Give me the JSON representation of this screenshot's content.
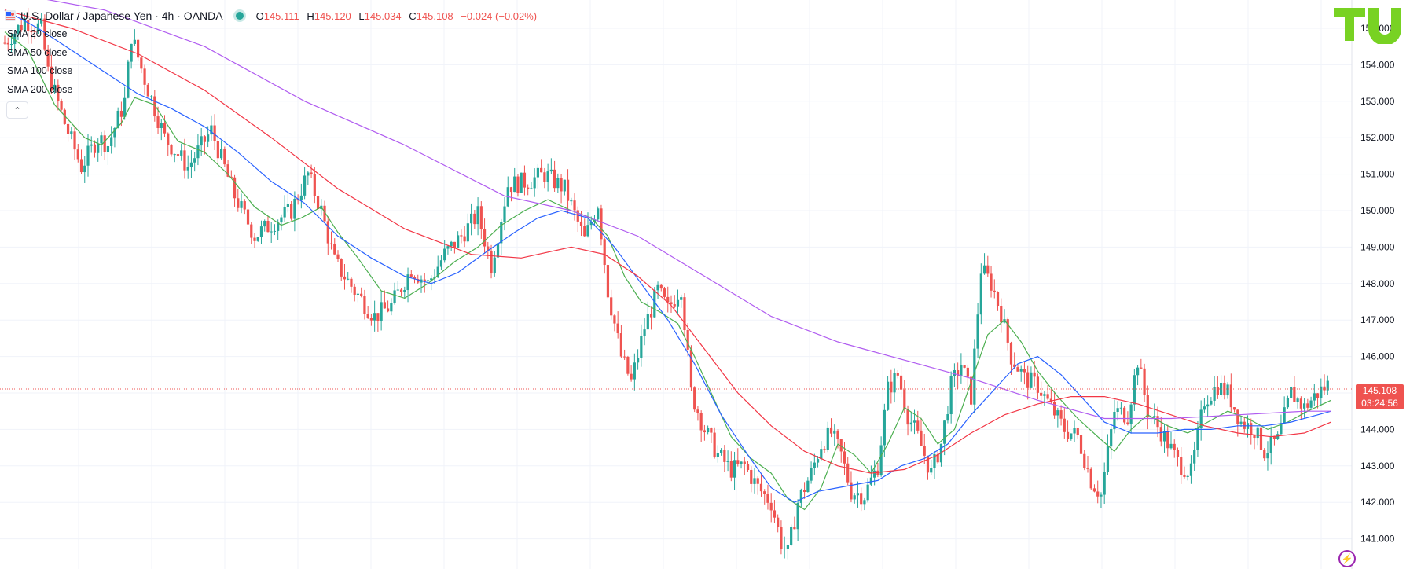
{
  "header": {
    "title": "U.S. Dollar / Japanese Yen · 4h · OANDA",
    "o_label": "O",
    "o": "145.111",
    "h_label": "H",
    "h": "145.120",
    "l_label": "L",
    "l": "145.034",
    "c_label": "C",
    "c": "145.108",
    "change": "−0.024 (−0.02%)"
  },
  "indicators": [
    {
      "label": "SMA 20 close",
      "color": "#4caf50"
    },
    {
      "label": "SMA 50 close",
      "color": "#2962ff"
    },
    {
      "label": "SMA 100 close",
      "color": "#f23645"
    },
    {
      "label": "SMA 200 close",
      "color": "#b05cf0"
    }
  ],
  "collapse_icon": "chevron-up-icon",
  "price_tag": {
    "price": "145.108",
    "countdown": "03:24:56"
  },
  "colors": {
    "up": "#26a69a",
    "down": "#ef5350",
    "grid": "#f0f3fa",
    "price_line": "#ef5350"
  },
  "chart_data": {
    "type": "candlestick",
    "y_axis_ticks": [
      "155.000",
      "154.000",
      "153.000",
      "152.000",
      "151.000",
      "150.000",
      "149.000",
      "148.000",
      "147.000",
      "146.000",
      "145.000",
      "144.000",
      "143.000",
      "142.000",
      "141.000"
    ],
    "ylim": [
      140.5,
      155.5
    ],
    "last_price": 145.108,
    "close_path": [
      [
        0,
        154.6
      ],
      [
        12,
        155.2
      ],
      [
        22,
        155.0
      ],
      [
        26,
        153.8
      ],
      [
        36,
        152.4
      ],
      [
        46,
        151.2
      ],
      [
        56,
        152.0
      ],
      [
        62,
        151.8
      ],
      [
        72,
        153.0
      ],
      [
        76,
        154.8
      ],
      [
        84,
        153.6
      ],
      [
        96,
        152.0
      ],
      [
        110,
        151.2
      ],
      [
        124,
        152.2
      ],
      [
        138,
        150.4
      ],
      [
        150,
        149.3
      ],
      [
        162,
        149.7
      ],
      [
        172,
        150.0
      ],
      [
        182,
        151.0
      ],
      [
        190,
        150.0
      ],
      [
        198,
        148.6
      ],
      [
        210,
        147.8
      ],
      [
        222,
        147.1
      ],
      [
        232,
        147.4
      ],
      [
        244,
        148.4
      ],
      [
        254,
        148.0
      ],
      [
        264,
        148.8
      ],
      [
        274,
        149.3
      ],
      [
        284,
        149.9
      ],
      [
        292,
        148.5
      ],
      [
        302,
        150.7
      ],
      [
        314,
        150.8
      ],
      [
        324,
        151.0
      ],
      [
        336,
        150.6
      ],
      [
        348,
        149.2
      ],
      [
        356,
        150.2
      ],
      [
        362,
        147.8
      ],
      [
        370,
        146.0
      ],
      [
        376,
        145.3
      ],
      [
        384,
        146.8
      ],
      [
        392,
        147.8
      ],
      [
        398,
        147.3
      ],
      [
        406,
        147.9
      ],
      [
        412,
        145.0
      ],
      [
        420,
        144.0
      ],
      [
        428,
        143.3
      ],
      [
        436,
        142.9
      ],
      [
        444,
        143.0
      ],
      [
        452,
        142.4
      ],
      [
        460,
        142.0
      ],
      [
        466,
        140.9
      ],
      [
        470,
        140.6
      ],
      [
        476,
        142.0
      ],
      [
        484,
        142.8
      ],
      [
        490,
        143.6
      ],
      [
        496,
        143.9
      ],
      [
        502,
        143.3
      ],
      [
        508,
        142.3
      ],
      [
        516,
        142.2
      ],
      [
        524,
        143.0
      ],
      [
        530,
        145.1
      ],
      [
        536,
        145.5
      ],
      [
        542,
        144.4
      ],
      [
        548,
        143.8
      ],
      [
        556,
        142.8
      ],
      [
        562,
        143.6
      ],
      [
        568,
        145.2
      ],
      [
        574,
        145.8
      ],
      [
        580,
        144.9
      ],
      [
        586,
        148.4
      ],
      [
        592,
        148.0
      ],
      [
        598,
        147.2
      ],
      [
        604,
        146.0
      ],
      [
        612,
        145.4
      ],
      [
        620,
        145.2
      ],
      [
        628,
        144.6
      ],
      [
        636,
        144.0
      ],
      [
        644,
        143.8
      ],
      [
        652,
        142.6
      ],
      [
        658,
        142.2
      ],
      [
        666,
        144.5
      ],
      [
        674,
        144.4
      ],
      [
        680,
        145.9
      ],
      [
        686,
        144.5
      ],
      [
        696,
        143.8
      ],
      [
        704,
        143.1
      ],
      [
        712,
        142.8
      ],
      [
        720,
        144.8
      ],
      [
        728,
        145.2
      ],
      [
        734,
        145.0
      ],
      [
        742,
        144.2
      ],
      [
        750,
        144.0
      ],
      [
        756,
        143.4
      ],
      [
        764,
        143.7
      ],
      [
        772,
        145.0
      ],
      [
        780,
        144.6
      ],
      [
        788,
        145.0
      ],
      [
        796,
        145.3
      ]
    ],
    "series": [
      {
        "name": "SMA 20 close",
        "values": [
          [
            0,
            154.9
          ],
          [
            14,
            154.4
          ],
          [
            30,
            152.9
          ],
          [
            48,
            152.0
          ],
          [
            58,
            151.8
          ],
          [
            70,
            152.4
          ],
          [
            78,
            153.1
          ],
          [
            90,
            152.9
          ],
          [
            104,
            151.9
          ],
          [
            120,
            151.6
          ],
          [
            134,
            151.0
          ],
          [
            150,
            150.1
          ],
          [
            166,
            149.6
          ],
          [
            178,
            149.8
          ],
          [
            190,
            150.1
          ],
          [
            200,
            149.4
          ],
          [
            212,
            148.7
          ],
          [
            226,
            147.8
          ],
          [
            240,
            147.6
          ],
          [
            254,
            148.0
          ],
          [
            270,
            148.6
          ],
          [
            284,
            149.0
          ],
          [
            298,
            149.6
          ],
          [
            312,
            150.0
          ],
          [
            326,
            150.3
          ],
          [
            340,
            150.0
          ],
          [
            352,
            149.8
          ],
          [
            362,
            149.3
          ],
          [
            372,
            148.2
          ],
          [
            382,
            147.5
          ],
          [
            394,
            147.2
          ],
          [
            404,
            146.9
          ],
          [
            414,
            146.0
          ],
          [
            424,
            145.0
          ],
          [
            436,
            143.8
          ],
          [
            448,
            143.2
          ],
          [
            460,
            142.8
          ],
          [
            470,
            142.1
          ],
          [
            480,
            141.8
          ],
          [
            490,
            142.4
          ],
          [
            500,
            143.6
          ],
          [
            510,
            143.3
          ],
          [
            520,
            142.8
          ],
          [
            530,
            143.6
          ],
          [
            540,
            144.6
          ],
          [
            550,
            144.3
          ],
          [
            560,
            143.6
          ],
          [
            570,
            144.0
          ],
          [
            580,
            145.3
          ],
          [
            590,
            146.6
          ],
          [
            600,
            147.0
          ],
          [
            610,
            146.4
          ],
          [
            620,
            145.6
          ],
          [
            632,
            144.9
          ],
          [
            644,
            144.3
          ],
          [
            656,
            143.8
          ],
          [
            666,
            143.4
          ],
          [
            676,
            144.0
          ],
          [
            686,
            144.4
          ],
          [
            698,
            144.1
          ],
          [
            710,
            143.9
          ],
          [
            722,
            144.2
          ],
          [
            734,
            144.5
          ],
          [
            746,
            144.3
          ],
          [
            758,
            144.0
          ],
          [
            770,
            144.2
          ],
          [
            782,
            144.5
          ],
          [
            796,
            144.8
          ]
        ]
      },
      {
        "name": "SMA 50 close",
        "values": [
          [
            0,
            155.5
          ],
          [
            20,
            155.0
          ],
          [
            40,
            154.4
          ],
          [
            60,
            153.8
          ],
          [
            80,
            153.2
          ],
          [
            100,
            152.8
          ],
          [
            120,
            152.3
          ],
          [
            140,
            151.6
          ],
          [
            160,
            150.8
          ],
          [
            180,
            150.2
          ],
          [
            200,
            149.3
          ],
          [
            220,
            148.7
          ],
          [
            240,
            148.2
          ],
          [
            256,
            148.0
          ],
          [
            272,
            148.3
          ],
          [
            290,
            148.9
          ],
          [
            306,
            149.4
          ],
          [
            320,
            149.8
          ],
          [
            334,
            150.0
          ],
          [
            350,
            149.8
          ],
          [
            366,
            149.0
          ],
          [
            382,
            148.0
          ],
          [
            398,
            147.0
          ],
          [
            414,
            145.8
          ],
          [
            430,
            144.4
          ],
          [
            446,
            143.3
          ],
          [
            460,
            142.4
          ],
          [
            474,
            142.0
          ],
          [
            488,
            142.3
          ],
          [
            500,
            142.4
          ],
          [
            512,
            142.5
          ],
          [
            524,
            142.6
          ],
          [
            538,
            143.0
          ],
          [
            552,
            143.2
          ],
          [
            566,
            143.6
          ],
          [
            580,
            144.4
          ],
          [
            594,
            145.1
          ],
          [
            608,
            145.8
          ],
          [
            620,
            146.0
          ],
          [
            634,
            145.5
          ],
          [
            648,
            144.8
          ],
          [
            660,
            144.2
          ],
          [
            676,
            143.9
          ],
          [
            692,
            143.9
          ],
          [
            708,
            144.0
          ],
          [
            724,
            144.0
          ],
          [
            740,
            144.1
          ],
          [
            756,
            144.1
          ],
          [
            772,
            144.2
          ],
          [
            788,
            144.4
          ],
          [
            796,
            144.5
          ]
        ]
      },
      {
        "name": "SMA 100 close",
        "values": [
          [
            0,
            155.5
          ],
          [
            40,
            155.0
          ],
          [
            80,
            154.3
          ],
          [
            120,
            153.3
          ],
          [
            160,
            152.0
          ],
          [
            200,
            150.6
          ],
          [
            240,
            149.5
          ],
          [
            280,
            148.8
          ],
          [
            310,
            148.7
          ],
          [
            340,
            149.0
          ],
          [
            360,
            148.8
          ],
          [
            380,
            148.2
          ],
          [
            400,
            147.4
          ],
          [
            420,
            146.2
          ],
          [
            440,
            145.0
          ],
          [
            460,
            144.1
          ],
          [
            480,
            143.4
          ],
          [
            500,
            143.0
          ],
          [
            520,
            142.8
          ],
          [
            540,
            142.9
          ],
          [
            560,
            143.3
          ],
          [
            580,
            143.9
          ],
          [
            600,
            144.4
          ],
          [
            620,
            144.7
          ],
          [
            640,
            144.9
          ],
          [
            660,
            144.9
          ],
          [
            680,
            144.7
          ],
          [
            700,
            144.4
          ],
          [
            720,
            144.1
          ],
          [
            740,
            143.9
          ],
          [
            760,
            143.8
          ],
          [
            780,
            143.9
          ],
          [
            796,
            144.2
          ]
        ]
      },
      {
        "name": "SMA 200 close",
        "values": [
          [
            0,
            156.0
          ],
          [
            60,
            155.5
          ],
          [
            120,
            154.5
          ],
          [
            180,
            153.0
          ],
          [
            240,
            151.8
          ],
          [
            300,
            150.4
          ],
          [
            340,
            150.0
          ],
          [
            380,
            149.3
          ],
          [
            420,
            148.2
          ],
          [
            460,
            147.1
          ],
          [
            500,
            146.4
          ],
          [
            540,
            145.9
          ],
          [
            580,
            145.4
          ],
          [
            620,
            144.8
          ],
          [
            660,
            144.3
          ],
          [
            700,
            144.3
          ],
          [
            740,
            144.4
          ],
          [
            780,
            144.5
          ],
          [
            796,
            144.5
          ]
        ]
      }
    ]
  }
}
